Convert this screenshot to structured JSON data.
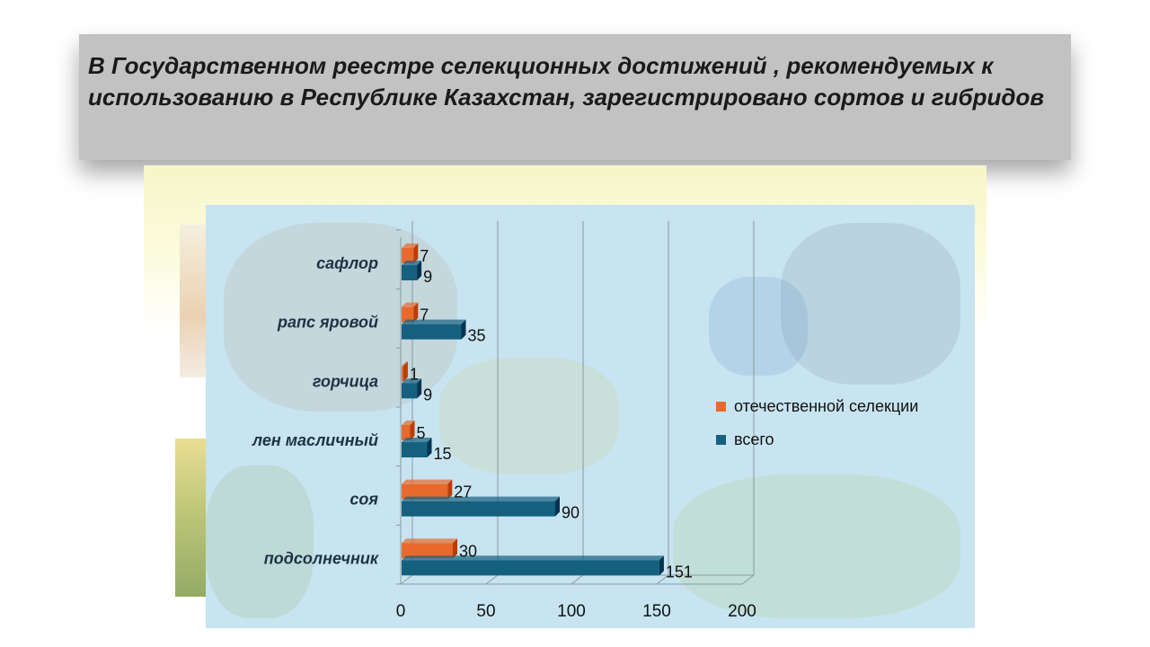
{
  "slide": {
    "title": "В Государственном реестре селекционных достижений  , рекомендуемых к использованию в Республике Казахстан, зарегистрировано сортов и гибридов"
  },
  "colors": {
    "domestic": "#e8692b",
    "total": "#16607f",
    "panel": "#c7e4f0",
    "title_box": "#c2c2c2"
  },
  "chart_data": {
    "type": "bar",
    "orientation": "horizontal",
    "style": "3d",
    "categories": [
      "сафлор",
      "рапс яровой",
      "горчица",
      "лен масличный",
      "соя",
      "подсолнечник"
    ],
    "series": [
      {
        "name": "отечественной селекции",
        "values": [
          7,
          7,
          1,
          5,
          27,
          30
        ]
      },
      {
        "name": "всего",
        "values": [
          9,
          35,
          9,
          15,
          90,
          151
        ]
      }
    ],
    "xlim": [
      0,
      200
    ],
    "xticks": [
      0,
      50,
      100,
      150,
      200
    ],
    "grid": true,
    "legend_position": "right"
  }
}
